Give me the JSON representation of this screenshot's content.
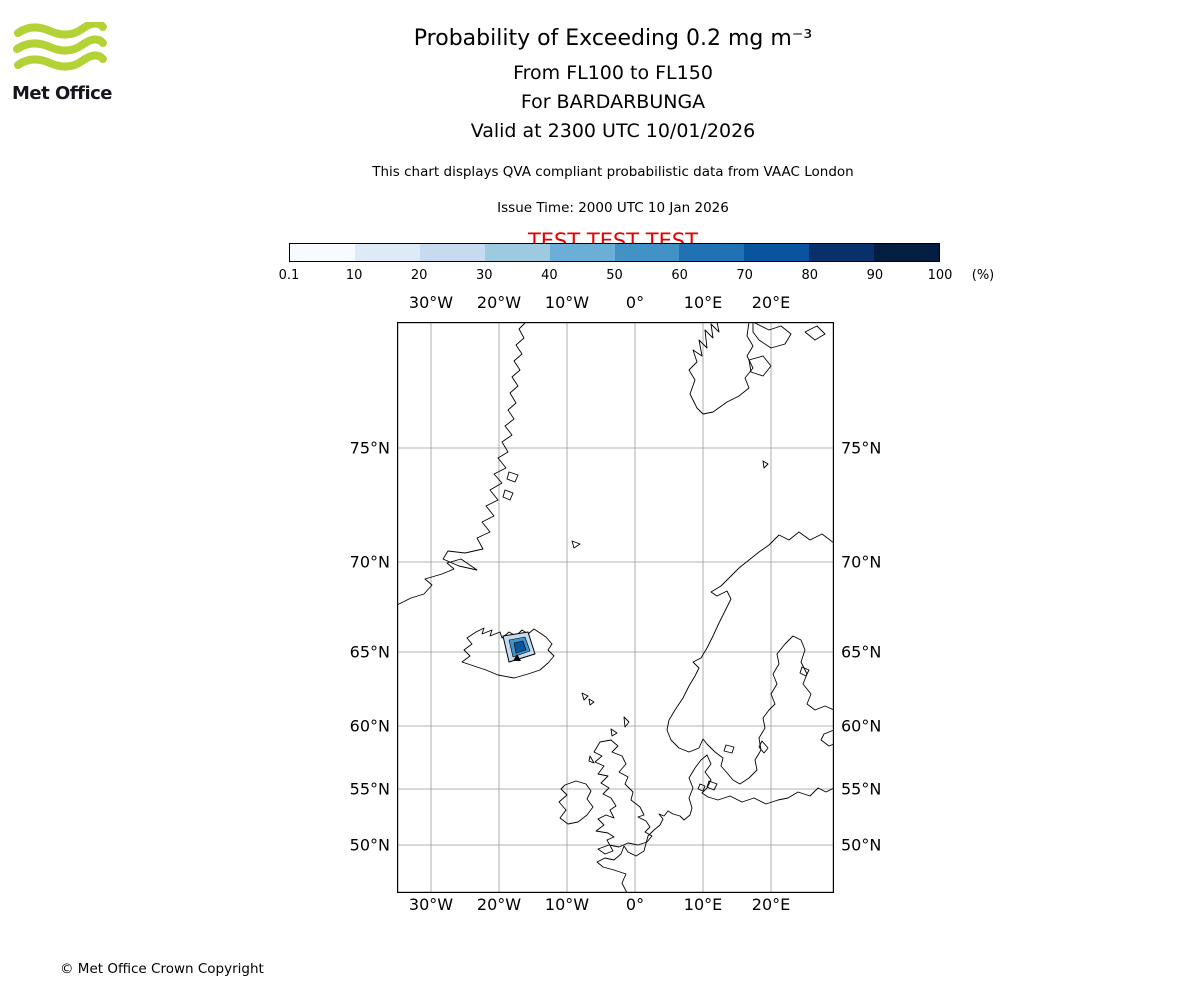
{
  "logo": {
    "brand": "Met Office"
  },
  "header": {
    "title": "Probability of Exceeding 0.2 mg m⁻³",
    "subtitle1": "From FL100 to FL150",
    "subtitle2": "For BARDARBUNGA",
    "subtitle3": "Valid at 2300 UTC 10/01/2026",
    "description": "This chart displays QVA compliant probabilistic data from VAAC London",
    "issue_time": "Issue Time: 2000 UTC 10 Jan 2026",
    "test_banner": "TEST TEST TEST",
    "test_color": "#e60000"
  },
  "colorbar": {
    "ticks": [
      "0.1",
      "10",
      "20",
      "30",
      "40",
      "50",
      "60",
      "70",
      "80",
      "90",
      "100"
    ],
    "unit": "(%)",
    "colors": [
      "#f7fbff",
      "#deebf7",
      "#c6dbef",
      "#9ecae1",
      "#6baed6",
      "#4292c6",
      "#2171b5",
      "#0a539e",
      "#08306b",
      "#041e42"
    ]
  },
  "map": {
    "lon_labels": [
      "30°W",
      "20°W",
      "10°W",
      "0°",
      "10°E",
      "20°E"
    ],
    "lat_labels": [
      "75°N",
      "70°N",
      "65°N",
      "60°N",
      "55°N",
      "50°N"
    ],
    "grid_color": "#9a9a9a",
    "coast_color": "#000000"
  },
  "footer": {
    "copyright": "© Met Office Crown Copyright"
  }
}
